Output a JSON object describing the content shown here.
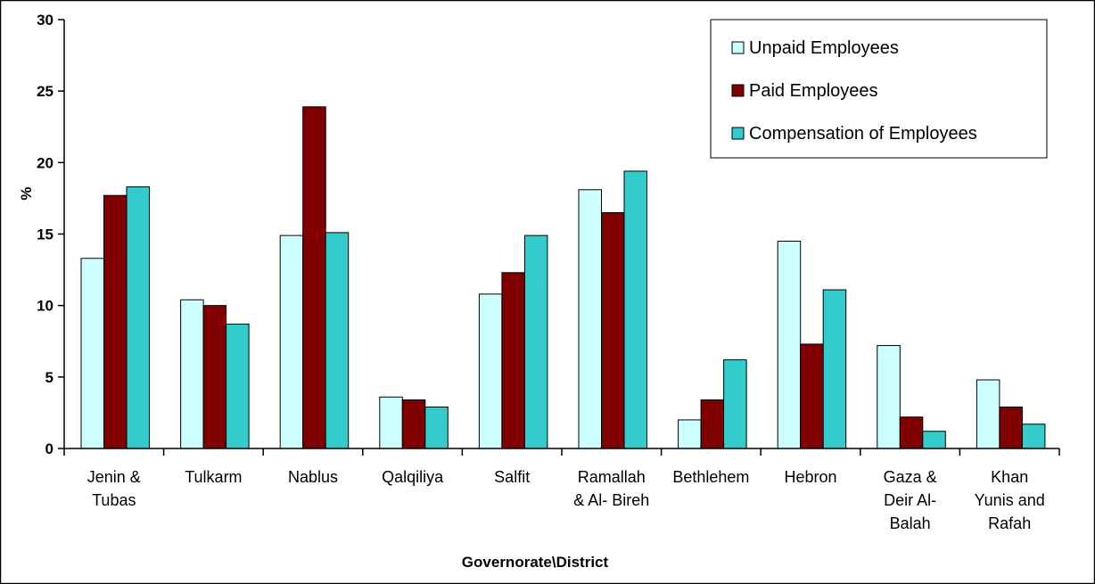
{
  "chart_data": {
    "type": "bar",
    "title": "",
    "xlabel": "Governorate\\District",
    "ylabel": "%",
    "ylim": [
      0,
      30
    ],
    "yticks": [
      0,
      5,
      10,
      15,
      20,
      25,
      30
    ],
    "grid": false,
    "legend_position": "top-right",
    "categories": [
      [
        "Jenin &",
        "Tubas"
      ],
      [
        "Tulkarm"
      ],
      [
        "Nablus"
      ],
      [
        "Qalqiliya"
      ],
      [
        "Salfit"
      ],
      [
        "Ramallah",
        "& Al- Bireh"
      ],
      [
        "Bethlehem"
      ],
      [
        "Hebron"
      ],
      [
        "Gaza &",
        "Deir Al-",
        "Balah"
      ],
      [
        "Khan",
        "Yunis and",
        "Rafah"
      ]
    ],
    "series": [
      {
        "name": "Unpaid Employees",
        "color": "#CCFFFF",
        "values": [
          13.3,
          10.4,
          14.9,
          3.6,
          10.8,
          18.1,
          2.0,
          14.5,
          7.2,
          4.8
        ]
      },
      {
        "name": "Paid Employees",
        "color": "#800000",
        "values": [
          17.7,
          10.0,
          23.9,
          3.4,
          12.3,
          16.5,
          3.4,
          7.3,
          2.2,
          2.9
        ]
      },
      {
        "name": "Compensation of Employees",
        "color": "#33CCCC",
        "values": [
          18.3,
          8.7,
          15.1,
          2.9,
          14.9,
          19.4,
          6.2,
          11.1,
          1.2,
          1.7
        ]
      }
    ]
  }
}
